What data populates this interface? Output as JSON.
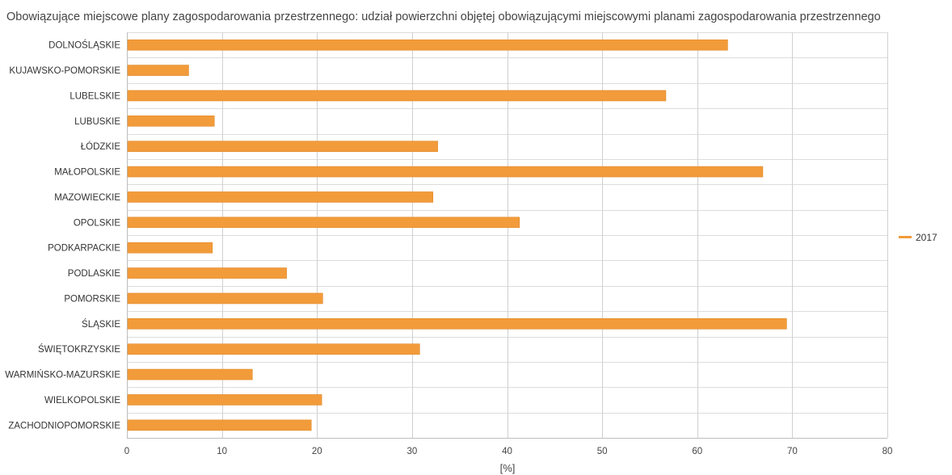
{
  "chart_data": {
    "type": "bar",
    "orientation": "horizontal",
    "title": "Obowiązujące miejscowe plany zagospodarowania przestrzennego: udział powierzchni objętej obowiązującymi miejscowymi planami zagospodarowania przestrzennego",
    "xlabel": "[%]",
    "ylabel": "",
    "xlim": [
      0,
      80
    ],
    "x_ticks": [
      0,
      10,
      20,
      30,
      40,
      50,
      60,
      70,
      80
    ],
    "grid": true,
    "legend_position": "right",
    "bar_color": "#f29b3a",
    "categories": [
      "DOLNOŚLĄSKIE",
      "KUJAWSKO-POMORSKIE",
      "LUBELSKIE",
      "LUBUSKIE",
      "ŁÓDZKIE",
      "MAŁOPOLSKIE",
      "MAZOWIECKIE",
      "OPOLSKIE",
      "PODKARPACKIE",
      "PODLASKIE",
      "POMORSKIE",
      "ŚLĄSKIE",
      "ŚWIĘTOKRZYSKIE",
      "WARMIŃSKO-MAZURSKIE",
      "WIELKOPOLSKIE",
      "ZACHODNIOPOMORSKIE"
    ],
    "series": [
      {
        "name": "2017",
        "values": [
          63.2,
          6.5,
          56.7,
          9.2,
          32.7,
          66.9,
          32.2,
          41.3,
          9.0,
          16.8,
          20.6,
          69.4,
          30.8,
          13.2,
          20.5,
          19.4
        ]
      }
    ]
  }
}
